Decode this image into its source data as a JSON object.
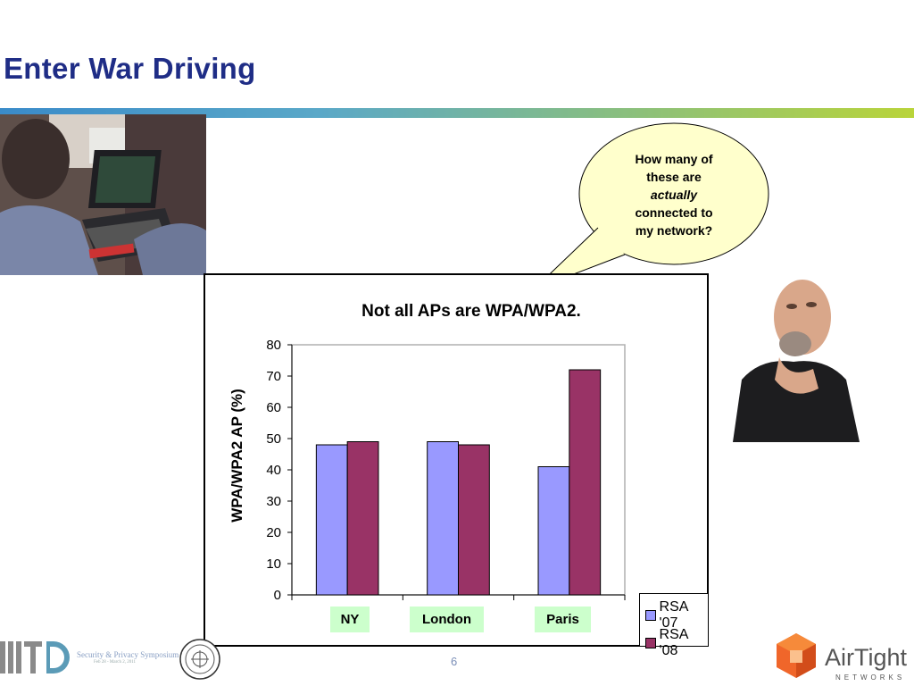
{
  "slide": {
    "title": "Enter War Driving",
    "page_number": "6"
  },
  "callout": {
    "line1": "How many of",
    "line2": "these are",
    "line3": "actually",
    "line4": "connected to",
    "line5": "my network?"
  },
  "chart_data": {
    "type": "bar",
    "title": "Not all APs are WPA/WPA2.",
    "ylabel": "WPA/WPA2 AP (%)",
    "xlabel": "",
    "categories": [
      "NY",
      "London",
      "Paris"
    ],
    "series": [
      {
        "name": "RSA '07",
        "values": [
          48,
          49,
          41
        ],
        "color": "#9999ff"
      },
      {
        "name": "RSA '08",
        "values": [
          49,
          48,
          72
        ],
        "color": "#993366"
      }
    ],
    "ylim": [
      0,
      80
    ],
    "yticks": [
      "0",
      "10",
      "20",
      "30",
      "40",
      "50",
      "60",
      "70",
      "80"
    ],
    "grid": false,
    "legend_position": "bottom-right"
  },
  "footer": {
    "symposium": "Security & Privacy Symposium",
    "dates": "Feb 28 - March 2, 2011",
    "brand_name": "AirTight",
    "brand_sub": "NETWORKS"
  }
}
